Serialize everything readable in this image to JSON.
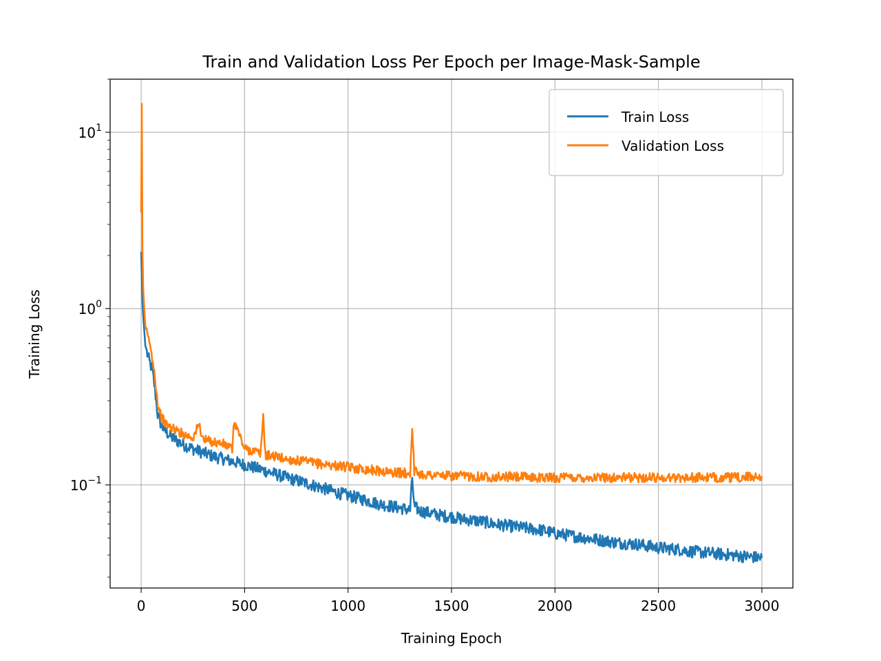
{
  "chart_data": {
    "type": "line",
    "title": "Train and Validation Loss Per Epoch per Image-Mask-Sample",
    "xlabel": "Training Epoch",
    "ylabel": "Training Loss",
    "xlim": [
      -150,
      3150
    ],
    "ylim": [
      0.026,
      20
    ],
    "yscale": "log",
    "grid": true,
    "legend_position": "top-right",
    "x_ticks": [
      0,
      500,
      1000,
      1500,
      2000,
      2500,
      3000
    ],
    "x_tick_labels": [
      "0",
      "500",
      "1000",
      "1500",
      "2000",
      "2500",
      "3000"
    ],
    "y_ticks": [
      0.1,
      1,
      10
    ],
    "y_tick_labels": [
      {
        "base": "10",
        "exp": "−1"
      },
      {
        "base": "10",
        "exp": "0"
      },
      {
        "base": "10",
        "exp": "1"
      }
    ],
    "series": [
      {
        "name": "Train Loss",
        "color": "#1f77b4",
        "x": [
          0,
          3,
          6,
          10,
          15,
          20,
          30,
          40,
          50,
          60,
          70,
          80,
          90,
          100,
          120,
          150,
          200,
          250,
          300,
          350,
          400,
          450,
          500,
          550,
          600,
          650,
          700,
          750,
          800,
          850,
          900,
          950,
          1000,
          1050,
          1100,
          1150,
          1200,
          1250,
          1300,
          1310,
          1320,
          1350,
          1400,
          1450,
          1500,
          1550,
          1600,
          1650,
          1700,
          1750,
          1800,
          1850,
          1900,
          1950,
          2000,
          2050,
          2100,
          2150,
          2200,
          2250,
          2300,
          2350,
          2400,
          2450,
          2500,
          2550,
          2600,
          2650,
          2700,
          2750,
          2800,
          2850,
          2900,
          2950,
          3000
        ],
        "values": [
          2.1,
          1.5,
          1.1,
          0.9,
          0.75,
          0.62,
          0.55,
          0.5,
          0.46,
          0.4,
          0.32,
          0.25,
          0.23,
          0.215,
          0.2,
          0.185,
          0.17,
          0.16,
          0.152,
          0.145,
          0.14,
          0.135,
          0.13,
          0.125,
          0.12,
          0.115,
          0.11,
          0.106,
          0.102,
          0.098,
          0.094,
          0.09,
          0.087,
          0.084,
          0.081,
          0.078,
          0.076,
          0.074,
          0.072,
          0.11,
          0.075,
          0.071,
          0.069,
          0.067,
          0.066,
          0.064,
          0.063,
          0.062,
          0.06,
          0.059,
          0.058,
          0.057,
          0.056,
          0.055,
          0.053,
          0.052,
          0.051,
          0.05,
          0.049,
          0.048,
          0.047,
          0.0465,
          0.046,
          0.045,
          0.044,
          0.0435,
          0.043,
          0.042,
          0.0415,
          0.041,
          0.0405,
          0.04,
          0.0395,
          0.039,
          0.0385
        ]
      },
      {
        "name": "Validation Loss",
        "color": "#ff7f0e",
        "x": [
          0,
          3,
          6,
          10,
          15,
          20,
          30,
          40,
          50,
          60,
          70,
          80,
          90,
          100,
          120,
          150,
          200,
          250,
          280,
          300,
          350,
          400,
          440,
          450,
          500,
          550,
          578,
          590,
          600,
          650,
          700,
          750,
          800,
          850,
          900,
          950,
          1000,
          1050,
          1100,
          1150,
          1200,
          1250,
          1300,
          1310,
          1320,
          1350,
          1400,
          1450,
          1500,
          1600,
          1700,
          1800,
          1900,
          2000,
          2100,
          2200,
          2300,
          2400,
          2500,
          2600,
          2700,
          2800,
          2900,
          3000
        ],
        "values": [
          3.5,
          14.5,
          2.2,
          1.3,
          1.0,
          0.8,
          0.7,
          0.65,
          0.55,
          0.48,
          0.38,
          0.29,
          0.26,
          0.24,
          0.22,
          0.21,
          0.195,
          0.185,
          0.22,
          0.18,
          0.175,
          0.17,
          0.16,
          0.23,
          0.16,
          0.155,
          0.15,
          0.25,
          0.148,
          0.145,
          0.14,
          0.137,
          0.135,
          0.132,
          0.13,
          0.128,
          0.126,
          0.124,
          0.122,
          0.12,
          0.118,
          0.117,
          0.116,
          0.22,
          0.12,
          0.115,
          0.114,
          0.113,
          0.112,
          0.112,
          0.111,
          0.111,
          0.11,
          0.11,
          0.11,
          0.11,
          0.11,
          0.11,
          0.11,
          0.11,
          0.11,
          0.11,
          0.11,
          0.112
        ]
      }
    ]
  }
}
